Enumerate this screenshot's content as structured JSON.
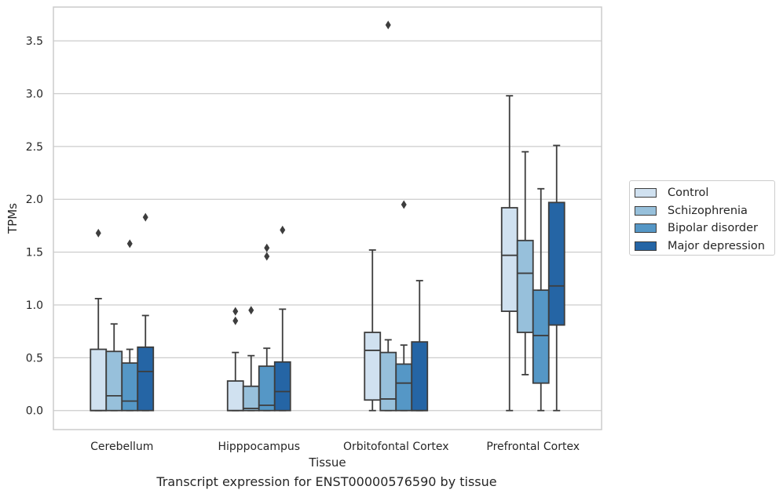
{
  "chart_data": {
    "type": "boxplot",
    "xlabel": "Tissue",
    "ylabel": "TPMs",
    "caption": "Transcript expression for ENST00000576590 by tissue",
    "ylim": [
      -0.18,
      3.82
    ],
    "yticks": [
      "0.0",
      "0.5",
      "1.0",
      "1.5",
      "2.0",
      "2.5",
      "3.0",
      "3.5"
    ],
    "grid": "horizontal",
    "legend_position": "right",
    "categories": [
      "Cerebellum",
      "Hipppocampus",
      "Orbitofontal Cortex",
      "Prefrontal Cortex"
    ],
    "series": [
      {
        "name": "Control",
        "color": "#d0e1f0",
        "boxes": [
          {
            "whisker_low": 0.0,
            "q1": 0.0,
            "median": 0.0,
            "q3": 0.58,
            "whisker_high": 1.06,
            "outliers": [
              1.68
            ]
          },
          {
            "whisker_low": 0.0,
            "q1": 0.0,
            "median": 0.0,
            "q3": 0.28,
            "whisker_high": 0.55,
            "outliers": [
              0.85,
              0.94
            ]
          },
          {
            "whisker_low": 0.0,
            "q1": 0.1,
            "median": 0.57,
            "q3": 0.74,
            "whisker_high": 1.52,
            "outliers": []
          },
          {
            "whisker_low": 0.0,
            "q1": 0.94,
            "median": 1.47,
            "q3": 1.92,
            "whisker_high": 2.98,
            "outliers": []
          }
        ]
      },
      {
        "name": "Schizophrenia",
        "color": "#97c0db",
        "boxes": [
          {
            "whisker_low": 0.0,
            "q1": 0.0,
            "median": 0.14,
            "q3": 0.56,
            "whisker_high": 0.82,
            "outliers": []
          },
          {
            "whisker_low": 0.0,
            "q1": 0.0,
            "median": 0.02,
            "q3": 0.23,
            "whisker_high": 0.52,
            "outliers": [
              0.95
            ]
          },
          {
            "whisker_low": 0.0,
            "q1": 0.0,
            "median": 0.11,
            "q3": 0.55,
            "whisker_high": 0.67,
            "outliers": [
              3.65
            ]
          },
          {
            "whisker_low": 0.34,
            "q1": 0.74,
            "median": 1.3,
            "q3": 1.61,
            "whisker_high": 2.45,
            "outliers": []
          }
        ]
      },
      {
        "name": "Bipolar disorder",
        "color": "#5597c6",
        "boxes": [
          {
            "whisker_low": 0.0,
            "q1": 0.0,
            "median": 0.09,
            "q3": 0.45,
            "whisker_high": 0.58,
            "outliers": [
              1.58
            ]
          },
          {
            "whisker_low": 0.0,
            "q1": 0.0,
            "median": 0.05,
            "q3": 0.42,
            "whisker_high": 0.59,
            "outliers": [
              1.46,
              1.54
            ]
          },
          {
            "whisker_low": 0.0,
            "q1": 0.0,
            "median": 0.26,
            "q3": 0.44,
            "whisker_high": 0.62,
            "outliers": [
              1.95
            ]
          },
          {
            "whisker_low": 0.0,
            "q1": 0.26,
            "median": 0.71,
            "q3": 1.14,
            "whisker_high": 2.1,
            "outliers": []
          }
        ]
      },
      {
        "name": "Major depression",
        "color": "#2565a5",
        "boxes": [
          {
            "whisker_low": 0.0,
            "q1": 0.0,
            "median": 0.37,
            "q3": 0.6,
            "whisker_high": 0.9,
            "outliers": [
              1.83
            ]
          },
          {
            "whisker_low": 0.0,
            "q1": 0.0,
            "median": 0.18,
            "q3": 0.46,
            "whisker_high": 0.96,
            "outliers": [
              1.71
            ]
          },
          {
            "whisker_low": 0.0,
            "q1": 0.0,
            "median": 0.0,
            "q3": 0.65,
            "whisker_high": 1.23,
            "outliers": []
          },
          {
            "whisker_low": 0.0,
            "q1": 0.81,
            "median": 1.18,
            "q3": 1.97,
            "whisker_high": 2.51,
            "outliers": []
          }
        ]
      }
    ]
  }
}
